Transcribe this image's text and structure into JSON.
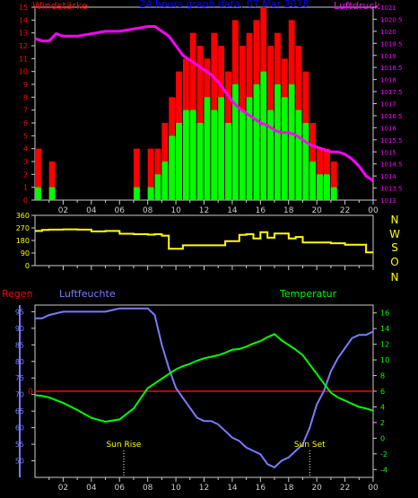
{
  "panel1": {
    "title_left": "Windstärke",
    "title_center": "24 hours graph data, 07 Mar 2018",
    "title_right": "Luftdruck",
    "colors": {
      "gust": "#ff0000",
      "wind": "#00ff00",
      "pressure": "#ff00ff",
      "axis_left": "#ff0000",
      "axis_right": "#ff00ff",
      "title_center": "#0000ff"
    }
  },
  "panel2": {
    "compass": [
      "N",
      "W",
      "S",
      "O",
      "N"
    ],
    "colors": {
      "dir": "#ffff00",
      "labels": "#ffff00"
    }
  },
  "panel3": {
    "label_rain": "Regen",
    "label_humidity": "Luftfeuchte",
    "label_temperature": "Temperatur",
    "sun_rise": "Sun Rise",
    "sun_set": "Sun Set",
    "colors": {
      "rain": "#ff0000",
      "humidity": "#7b7bff",
      "temperature": "#00ff00"
    }
  },
  "chart_data": [
    {
      "type": "bar",
      "title": "24 hours graph data, 07 Mar 2018",
      "x_ticks": [
        "02",
        "04",
        "06",
        "08",
        "10",
        "12",
        "14",
        "16",
        "18",
        "20",
        "22",
        "00"
      ],
      "y_left": {
        "label": "Windstärke",
        "ylim": [
          0,
          15
        ],
        "ticks": [
          0,
          1,
          2,
          3,
          4,
          5,
          6,
          7,
          8,
          9,
          10,
          11,
          12,
          13,
          14,
          15
        ]
      },
      "y_right": {
        "label": "Luftdruck",
        "ylim": [
          1013,
          1021
        ],
        "ticks": [
          1013,
          1013.5,
          1014,
          1014.5,
          1015,
          1015.5,
          1016,
          1016.5,
          1017,
          1017.5,
          1018,
          1018.5,
          1019,
          1019.5,
          1020,
          1020.5,
          1021
        ]
      },
      "series": [
        {
          "name": "Luftdruck",
          "type": "line",
          "x": [
            0,
            0.5,
            1,
            1.5,
            2,
            3,
            4,
            5,
            6,
            7,
            8,
            8.5,
            9,
            9.5,
            10,
            10.5,
            11,
            11.5,
            12,
            12.5,
            13,
            13.5,
            14,
            14.5,
            15,
            15.5,
            16,
            16.5,
            17,
            17.5,
            18,
            18.5,
            19,
            19.5,
            20,
            20.5,
            21,
            21.5,
            22,
            22.5,
            23,
            23.5,
            24
          ],
          "values": [
            1019.7,
            1019.6,
            1019.6,
            1019.9,
            1019.8,
            1019.8,
            1019.9,
            1020.0,
            1020.0,
            1020.1,
            1020.2,
            1020.2,
            1020.0,
            1019.8,
            1019.4,
            1019.0,
            1018.8,
            1018.6,
            1018.4,
            1018.2,
            1017.9,
            1017.5,
            1017.1,
            1016.8,
            1016.6,
            1016.4,
            1016.2,
            1016.1,
            1015.9,
            1015.8,
            1015.8,
            1015.7,
            1015.5,
            1015.3,
            1015.2,
            1015.1,
            1015.0,
            1015.0,
            1014.9,
            1014.7,
            1014.4,
            1014.0,
            1013.8
          ]
        },
        {
          "name": "Windböen",
          "type": "bar",
          "color": "#ff0000",
          "x": [
            0,
            1,
            2,
            3,
            4,
            5,
            6,
            7,
            8,
            8.5,
            9,
            9.5,
            10,
            10.5,
            11,
            11.5,
            12,
            12.5,
            13,
            13.5,
            14,
            14.5,
            15,
            15.5,
            16,
            16.5,
            17,
            17.5,
            18,
            18.5,
            19,
            19.5,
            20,
            20.5,
            21,
            22,
            23
          ],
          "values": [
            4,
            3,
            0,
            0,
            0,
            0,
            0,
            4,
            4,
            4,
            6,
            8,
            10,
            11,
            13,
            12,
            11,
            13,
            12,
            10,
            14,
            12,
            13,
            14,
            15,
            12,
            13,
            11,
            14,
            12,
            10,
            6,
            4,
            4,
            3,
            0,
            0
          ]
        },
        {
          "name": "Windstärke",
          "type": "bar",
          "color": "#00ff00",
          "x": [
            0,
            1,
            2,
            3,
            4,
            5,
            6,
            7,
            8,
            8.5,
            9,
            9.5,
            10,
            10.5,
            11,
            11.5,
            12,
            12.5,
            13,
            13.5,
            14,
            14.5,
            15,
            15.5,
            16,
            16.5,
            17,
            17.5,
            18,
            18.5,
            19,
            19.5,
            20,
            20.5,
            21,
            22,
            23
          ],
          "values": [
            1,
            1,
            0,
            0,
            0,
            0,
            0,
            1,
            1,
            2,
            3,
            5,
            6,
            7,
            7,
            6,
            8,
            7,
            8,
            6,
            9,
            7,
            8,
            9,
            10,
            7,
            9,
            8,
            9,
            7,
            6,
            3,
            2,
            2,
            1,
            0,
            0
          ]
        }
      ]
    },
    {
      "type": "line",
      "x_ticks": [],
      "y": {
        "ticks": [
          0,
          90,
          180,
          270,
          360
        ],
        "ylim": [
          0,
          360
        ]
      },
      "series": [
        {
          "name": "Windrichtung",
          "x": [
            0,
            0.5,
            1,
            1.5,
            2,
            3,
            4,
            5,
            6,
            7,
            8,
            8.5,
            9,
            9.5,
            10,
            10.5,
            11,
            11.5,
            12,
            12.5,
            13,
            13.5,
            14,
            14.5,
            15,
            15.5,
            16,
            16.5,
            17,
            17.5,
            18,
            18.5,
            19,
            19.5,
            20,
            20.5,
            21,
            21.5,
            22,
            22.5,
            23,
            23.5,
            24
          ],
          "values": [
            248,
            255,
            258,
            258,
            260,
            258,
            245,
            248,
            228,
            225,
            222,
            225,
            215,
            120,
            120,
            145,
            145,
            145,
            145,
            145,
            145,
            175,
            175,
            220,
            225,
            195,
            240,
            200,
            230,
            230,
            195,
            205,
            165,
            165,
            165,
            165,
            160,
            160,
            150,
            150,
            150,
            95,
            95
          ]
        }
      ]
    },
    {
      "type": "line",
      "x_ticks": [
        "02",
        "04",
        "06",
        "08",
        "10",
        "12",
        "14",
        "16",
        "18",
        "20",
        "22",
        "00"
      ],
      "y_left": {
        "label": "Luftfeuchte",
        "ylim": [
          45,
          97
        ],
        "ticks": [
          50,
          55,
          60,
          65,
          70,
          75,
          80,
          85,
          90,
          95
        ]
      },
      "y_right": {
        "label": "Temperatur",
        "ylim": [
          -5,
          17
        ],
        "ticks": [
          -4,
          -2,
          0,
          2,
          4,
          6,
          8,
          10,
          12,
          14,
          16
        ]
      },
      "rain_line": {
        "label": "0",
        "value": 0
      },
      "sun_rise": 6.3,
      "sun_set": 19.5,
      "series": [
        {
          "name": "Luftfeuchte",
          "x": [
            0,
            0.5,
            1,
            2,
            3,
            4,
            5,
            6,
            7,
            8,
            8.5,
            9,
            9.5,
            10,
            10.5,
            11,
            11.5,
            12,
            12.5,
            13,
            13.5,
            14,
            14.5,
            15,
            15.5,
            16,
            16.5,
            17,
            17.5,
            18,
            18.5,
            19,
            19.5,
            20,
            20.5,
            21,
            21.5,
            22,
            22.5,
            23,
            23.5,
            24
          ],
          "values": [
            93,
            93,
            94,
            95,
            95,
            95,
            95,
            96,
            96,
            96,
            94,
            85,
            78,
            72,
            69,
            66,
            63,
            62,
            62,
            61,
            59,
            57,
            56,
            54,
            53,
            52,
            49,
            48,
            50,
            51,
            53,
            55,
            60,
            67,
            71,
            77,
            81,
            84,
            87,
            88,
            88,
            89
          ]
        },
        {
          "name": "Temperatur",
          "x": [
            0,
            0.5,
            1,
            2,
            3,
            4,
            5,
            6,
            7,
            8,
            8.5,
            9,
            9.5,
            10,
            10.5,
            11,
            11.5,
            12,
            12.5,
            13,
            13.5,
            14,
            14.5,
            15,
            15.5,
            16,
            16.5,
            17,
            17.5,
            18,
            18.5,
            19,
            19.5,
            20,
            20.5,
            21,
            21.5,
            22,
            22.5,
            23,
            23.5,
            24
          ],
          "values": [
            5.5,
            5.4,
            5.2,
            4.5,
            3.6,
            2.6,
            2.1,
            2.4,
            3.8,
            6.4,
            7.0,
            7.6,
            8.2,
            8.8,
            9.2,
            9.5,
            9.9,
            10.2,
            10.4,
            10.6,
            10.9,
            11.3,
            11.4,
            11.7,
            12.1,
            12.4,
            12.9,
            13.3,
            12.5,
            11.9,
            11.3,
            10.6,
            9.4,
            8.2,
            7.0,
            5.8,
            5.2,
            4.8,
            4.4,
            4.0,
            3.8,
            3.5
          ]
        }
      ]
    }
  ]
}
